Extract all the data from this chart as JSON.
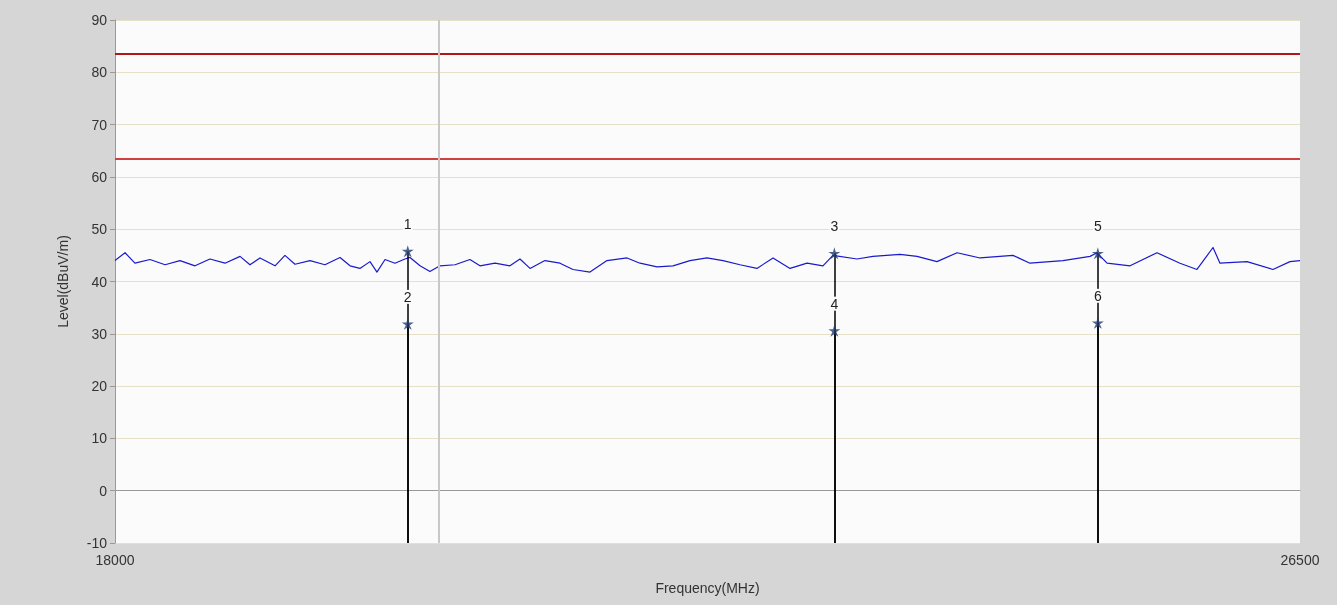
{
  "chart_data": {
    "type": "line",
    "xlabel": "Frequency(MHz)",
    "ylabel": "Level(dBuV/m)",
    "xlim": [
      18000,
      26500
    ],
    "xticks": [
      18000,
      26500
    ],
    "ylim": [
      -10,
      90
    ],
    "yticks": [
      -10,
      0,
      10,
      20,
      30,
      40,
      50,
      60,
      70,
      80,
      90
    ],
    "grid": "y",
    "line_style": "solid",
    "annotations": [
      {
        "text": "1",
        "x": 20100,
        "y": 45.8
      },
      {
        "text": "2",
        "x": 20100,
        "y": 31.9
      },
      {
        "text": "3",
        "x": 23160,
        "y": 45.4
      },
      {
        "text": "4",
        "x": 23160,
        "y": 30.6
      },
      {
        "text": "5",
        "x": 25050,
        "y": 45.4
      },
      {
        "text": "6",
        "x": 25050,
        "y": 32.1
      }
    ],
    "series": [
      {
        "color": "#1a1acc",
        "marker": "none",
        "x": [
          18000,
          18072,
          18143,
          18251,
          18359,
          18466,
          18574,
          18681,
          18789,
          18897,
          18968,
          19040,
          19148,
          19219,
          19291,
          19399,
          19506,
          19614,
          19686,
          19757,
          19829,
          19879,
          19937,
          20008,
          20080,
          20116,
          20188,
          20259,
          20331,
          20439,
          20546,
          20618,
          20726,
          20833,
          20905,
          20977,
          21084,
          21192,
          21285,
          21407,
          21529,
          21673,
          21766,
          21888,
          22003,
          22124,
          22246,
          22361,
          22483,
          22605,
          22720,
          22842,
          22964,
          23078,
          23150,
          23322,
          23437,
          23631,
          23753,
          23896,
          24040,
          24205,
          24441,
          24563,
          24800,
          24994,
          25044,
          25116,
          25281,
          25474,
          25639,
          25761,
          25876,
          25926,
          26120,
          26306,
          26428,
          26500
        ],
        "values": [
          44.0,
          45.5,
          43.5,
          44.2,
          43.2,
          44.0,
          43.0,
          44.3,
          43.5,
          44.8,
          43.2,
          44.5,
          43.0,
          45.0,
          43.3,
          44.0,
          43.2,
          44.6,
          43.0,
          42.5,
          43.8,
          41.8,
          44.2,
          43.5,
          44.3,
          44.6,
          43.0,
          41.9,
          43.0,
          43.2,
          44.2,
          43.0,
          43.5,
          43.0,
          44.3,
          42.5,
          44.0,
          43.5,
          42.3,
          41.8,
          44.0,
          44.5,
          43.5,
          42.8,
          43.0,
          44.0,
          44.5,
          44.0,
          43.2,
          42.5,
          44.5,
          42.5,
          43.5,
          43.0,
          45.0,
          44.3,
          44.8,
          45.2,
          44.8,
          43.8,
          45.5,
          44.5,
          45.0,
          43.5,
          44.0,
          44.8,
          45.5,
          43.5,
          43.0,
          45.5,
          43.5,
          42.3,
          46.5,
          43.5,
          43.8,
          42.3,
          43.8,
          44.0
        ]
      },
      {
        "type": "lollipop",
        "color": "#1f3a6e",
        "marker": "star",
        "x": [
          20100,
          20100,
          23160,
          23160,
          25050,
          25050
        ],
        "values": [
          45.8,
          31.9,
          45.4,
          30.6,
          45.4,
          32.1
        ],
        "errors": [
          [
            -10,
            45.8
          ],
          [
            -10,
            31.9
          ],
          [
            -10,
            45.4
          ],
          [
            -10,
            30.6
          ],
          [
            -10,
            45.4
          ],
          [
            -10,
            32.1
          ]
        ]
      }
    ],
    "ref_lines": [
      {
        "axis": "y",
        "value": 83.5,
        "label": null,
        "color": "#b01818"
      },
      {
        "axis": "y",
        "value": 63.5,
        "label": null,
        "color": "#d04040"
      },
      {
        "axis": "x",
        "value": 20320,
        "label": null,
        "color": "#c8c8c8"
      }
    ]
  }
}
